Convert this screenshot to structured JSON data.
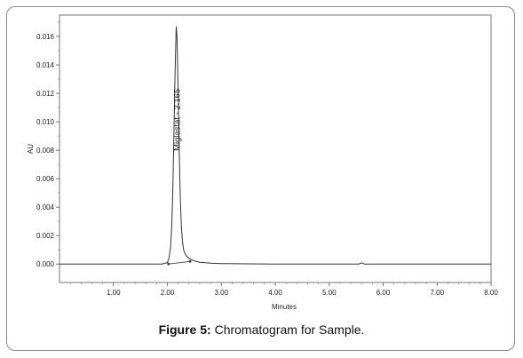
{
  "caption": {
    "label": "Figure 5:",
    "text": "Chromatogram for Sample."
  },
  "chart_data": {
    "type": "line",
    "title": "",
    "xlabel": "Minutes",
    "ylabel": "AU",
    "xlim": [
      0,
      8.0
    ],
    "ylim": [
      -0.0013,
      0.0175
    ],
    "x_ticks": [
      1.0,
      2.0,
      3.0,
      4.0,
      5.0,
      6.0,
      7.0,
      8.0
    ],
    "x_tick_labels": [
      "1.00",
      "2.00",
      "3.00",
      "4.00",
      "5.00",
      "6.00",
      "7.00",
      "8.00"
    ],
    "y_ticks": [
      0,
      0.002,
      0.004,
      0.006,
      0.008,
      0.01,
      0.012,
      0.014,
      0.016
    ],
    "y_tick_labels": [
      "0.000",
      "0.002",
      "0.004",
      "0.006",
      "0.008",
      "0.010",
      "0.012",
      "0.014",
      "0.016"
    ],
    "grid": false,
    "series": [
      {
        "color": "#333333",
        "x": [
          0,
          1.0,
          1.9,
          2.0,
          2.03,
          2.06,
          2.08,
          2.1,
          2.12,
          2.14,
          2.16,
          2.165,
          2.18,
          2.2,
          2.22,
          2.24,
          2.26,
          2.28,
          2.3,
          2.33,
          2.36,
          2.4,
          2.45,
          2.5,
          2.6,
          2.8,
          3.0,
          3.5,
          4.0,
          5.0,
          5.55,
          5.6,
          5.65,
          6.0,
          7.0,
          8.0
        ],
        "y": [
          0,
          0,
          0,
          0.0001,
          0.0004,
          0.0012,
          0.0026,
          0.005,
          0.0088,
          0.013,
          0.0162,
          0.0167,
          0.0158,
          0.012,
          0.0078,
          0.0046,
          0.0026,
          0.0016,
          0.001,
          0.0007,
          0.00055,
          0.0004,
          0.0003,
          0.00022,
          0.00012,
          6e-05,
          3e-05,
          1e-05,
          0,
          0,
          0,
          8e-05,
          0,
          0,
          0,
          0
        ]
      }
    ],
    "baseline": {
      "x": [
        2.02,
        2.42
      ],
      "y": [
        0.0,
        0.00018
      ]
    },
    "peak": {
      "label": "Miglastat - 2.165",
      "x": 2.165,
      "y": 0.0167
    }
  }
}
